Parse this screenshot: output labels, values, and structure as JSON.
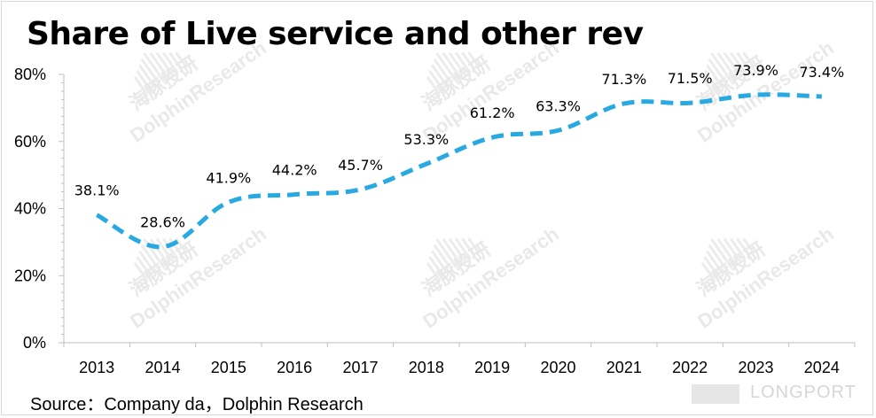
{
  "chart_data": {
    "type": "line",
    "title": "Share of Live service and other rev",
    "xlabel": "",
    "ylabel": "",
    "categories": [
      "2013",
      "2014",
      "2015",
      "2016",
      "2017",
      "2018",
      "2019",
      "2020",
      "2021",
      "2022",
      "2023",
      "2024"
    ],
    "values": [
      38.1,
      28.6,
      41.9,
      44.2,
      45.7,
      53.3,
      61.2,
      63.3,
      71.3,
      71.5,
      73.9,
      73.4
    ],
    "data_labels": [
      "38.1%",
      "28.6%",
      "41.9%",
      "44.2%",
      "45.7%",
      "53.3%",
      "61.2%",
      "63.3%",
      "71.3%",
      "71.5%",
      "73.9%",
      "73.4%"
    ],
    "ylim": [
      0,
      80
    ],
    "yticks": [
      0,
      20,
      40,
      60,
      80
    ],
    "ytick_labels": [
      "0%",
      "20%",
      "40%",
      "60%",
      "80%"
    ],
    "grid": false,
    "line_style": "dashed",
    "line_color": "#29a9e1"
  },
  "source": "Source：Company da，Dolphin Research",
  "watermark": {
    "text": "DolphinResearch",
    "cn_text": "海豚投研",
    "brand": "LONGPORT"
  }
}
